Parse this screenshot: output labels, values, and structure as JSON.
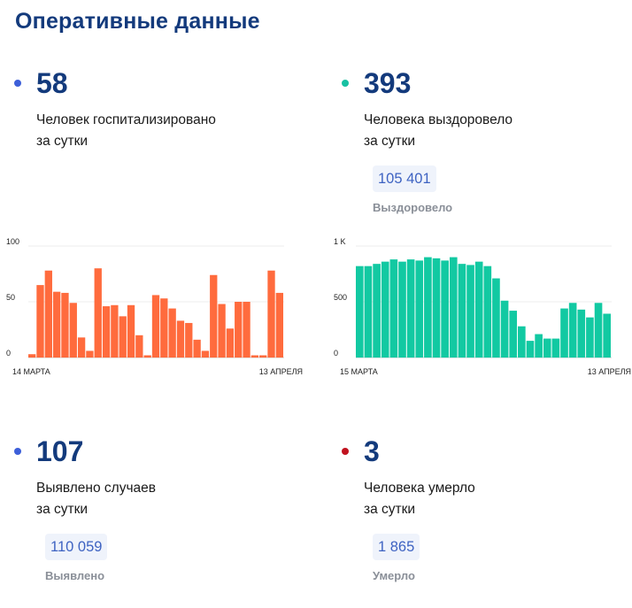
{
  "title": "Оперативные данные",
  "colors": {
    "title": "#133a7c",
    "dot_blue": "#3d5fd9",
    "dot_teal": "#17c1a2",
    "dot_red": "#c1121f",
    "bars_orange": "#ff6b3d",
    "bars_teal": "#12c9a2"
  },
  "hospitalized": {
    "value": "58",
    "line1": "Человек госпитализировано",
    "line2": "за сутки",
    "dot_color": "blue"
  },
  "recovered": {
    "value": "393",
    "line1": "Человека выздоровело",
    "line2": "за сутки",
    "total": "105 401",
    "total_label": "Выздоровело",
    "dot_color": "teal"
  },
  "cases": {
    "value": "107",
    "line1": "Выявлено случаев",
    "line2": "за сутки",
    "total": "110 059",
    "total_label": "Выявлено",
    "dot_color": "blue"
  },
  "deaths": {
    "value": "3",
    "line1": "Человека умерло",
    "line2": "за сутки",
    "total": "1 865",
    "total_label": "Умерло",
    "dot_color": "red"
  },
  "chart_data": [
    {
      "type": "bar",
      "title": "",
      "x_start_label": "14 МАРТА",
      "x_end_label": "13 АПРЕЛЯ",
      "y_ticks": [
        "100",
        "50",
        "0"
      ],
      "y_tick_values": [
        100,
        50,
        0
      ],
      "ylim": [
        0,
        100
      ],
      "grid": true,
      "color": "#ff6b3d",
      "values": [
        3,
        65,
        78,
        59,
        58,
        49,
        18,
        6,
        80,
        46,
        47,
        37,
        47,
        20,
        2,
        56,
        53,
        44,
        33,
        31,
        16,
        6,
        74,
        48,
        26,
        50,
        50,
        2,
        2,
        78,
        58
      ]
    },
    {
      "type": "bar",
      "title": "",
      "x_start_label": "15 МАРТА",
      "x_end_label": "13 АПРЕЛЯ",
      "y_ticks": [
        "1 K",
        "500",
        "0"
      ],
      "y_tick_values": [
        1000,
        500,
        0
      ],
      "ylim": [
        0,
        1000
      ],
      "grid": true,
      "color": "#12c9a2",
      "values": [
        820,
        820,
        840,
        860,
        880,
        860,
        880,
        870,
        900,
        890,
        870,
        900,
        840,
        830,
        860,
        820,
        710,
        510,
        420,
        280,
        150,
        210,
        170,
        170,
        440,
        490,
        430,
        360,
        490,
        393
      ]
    }
  ]
}
